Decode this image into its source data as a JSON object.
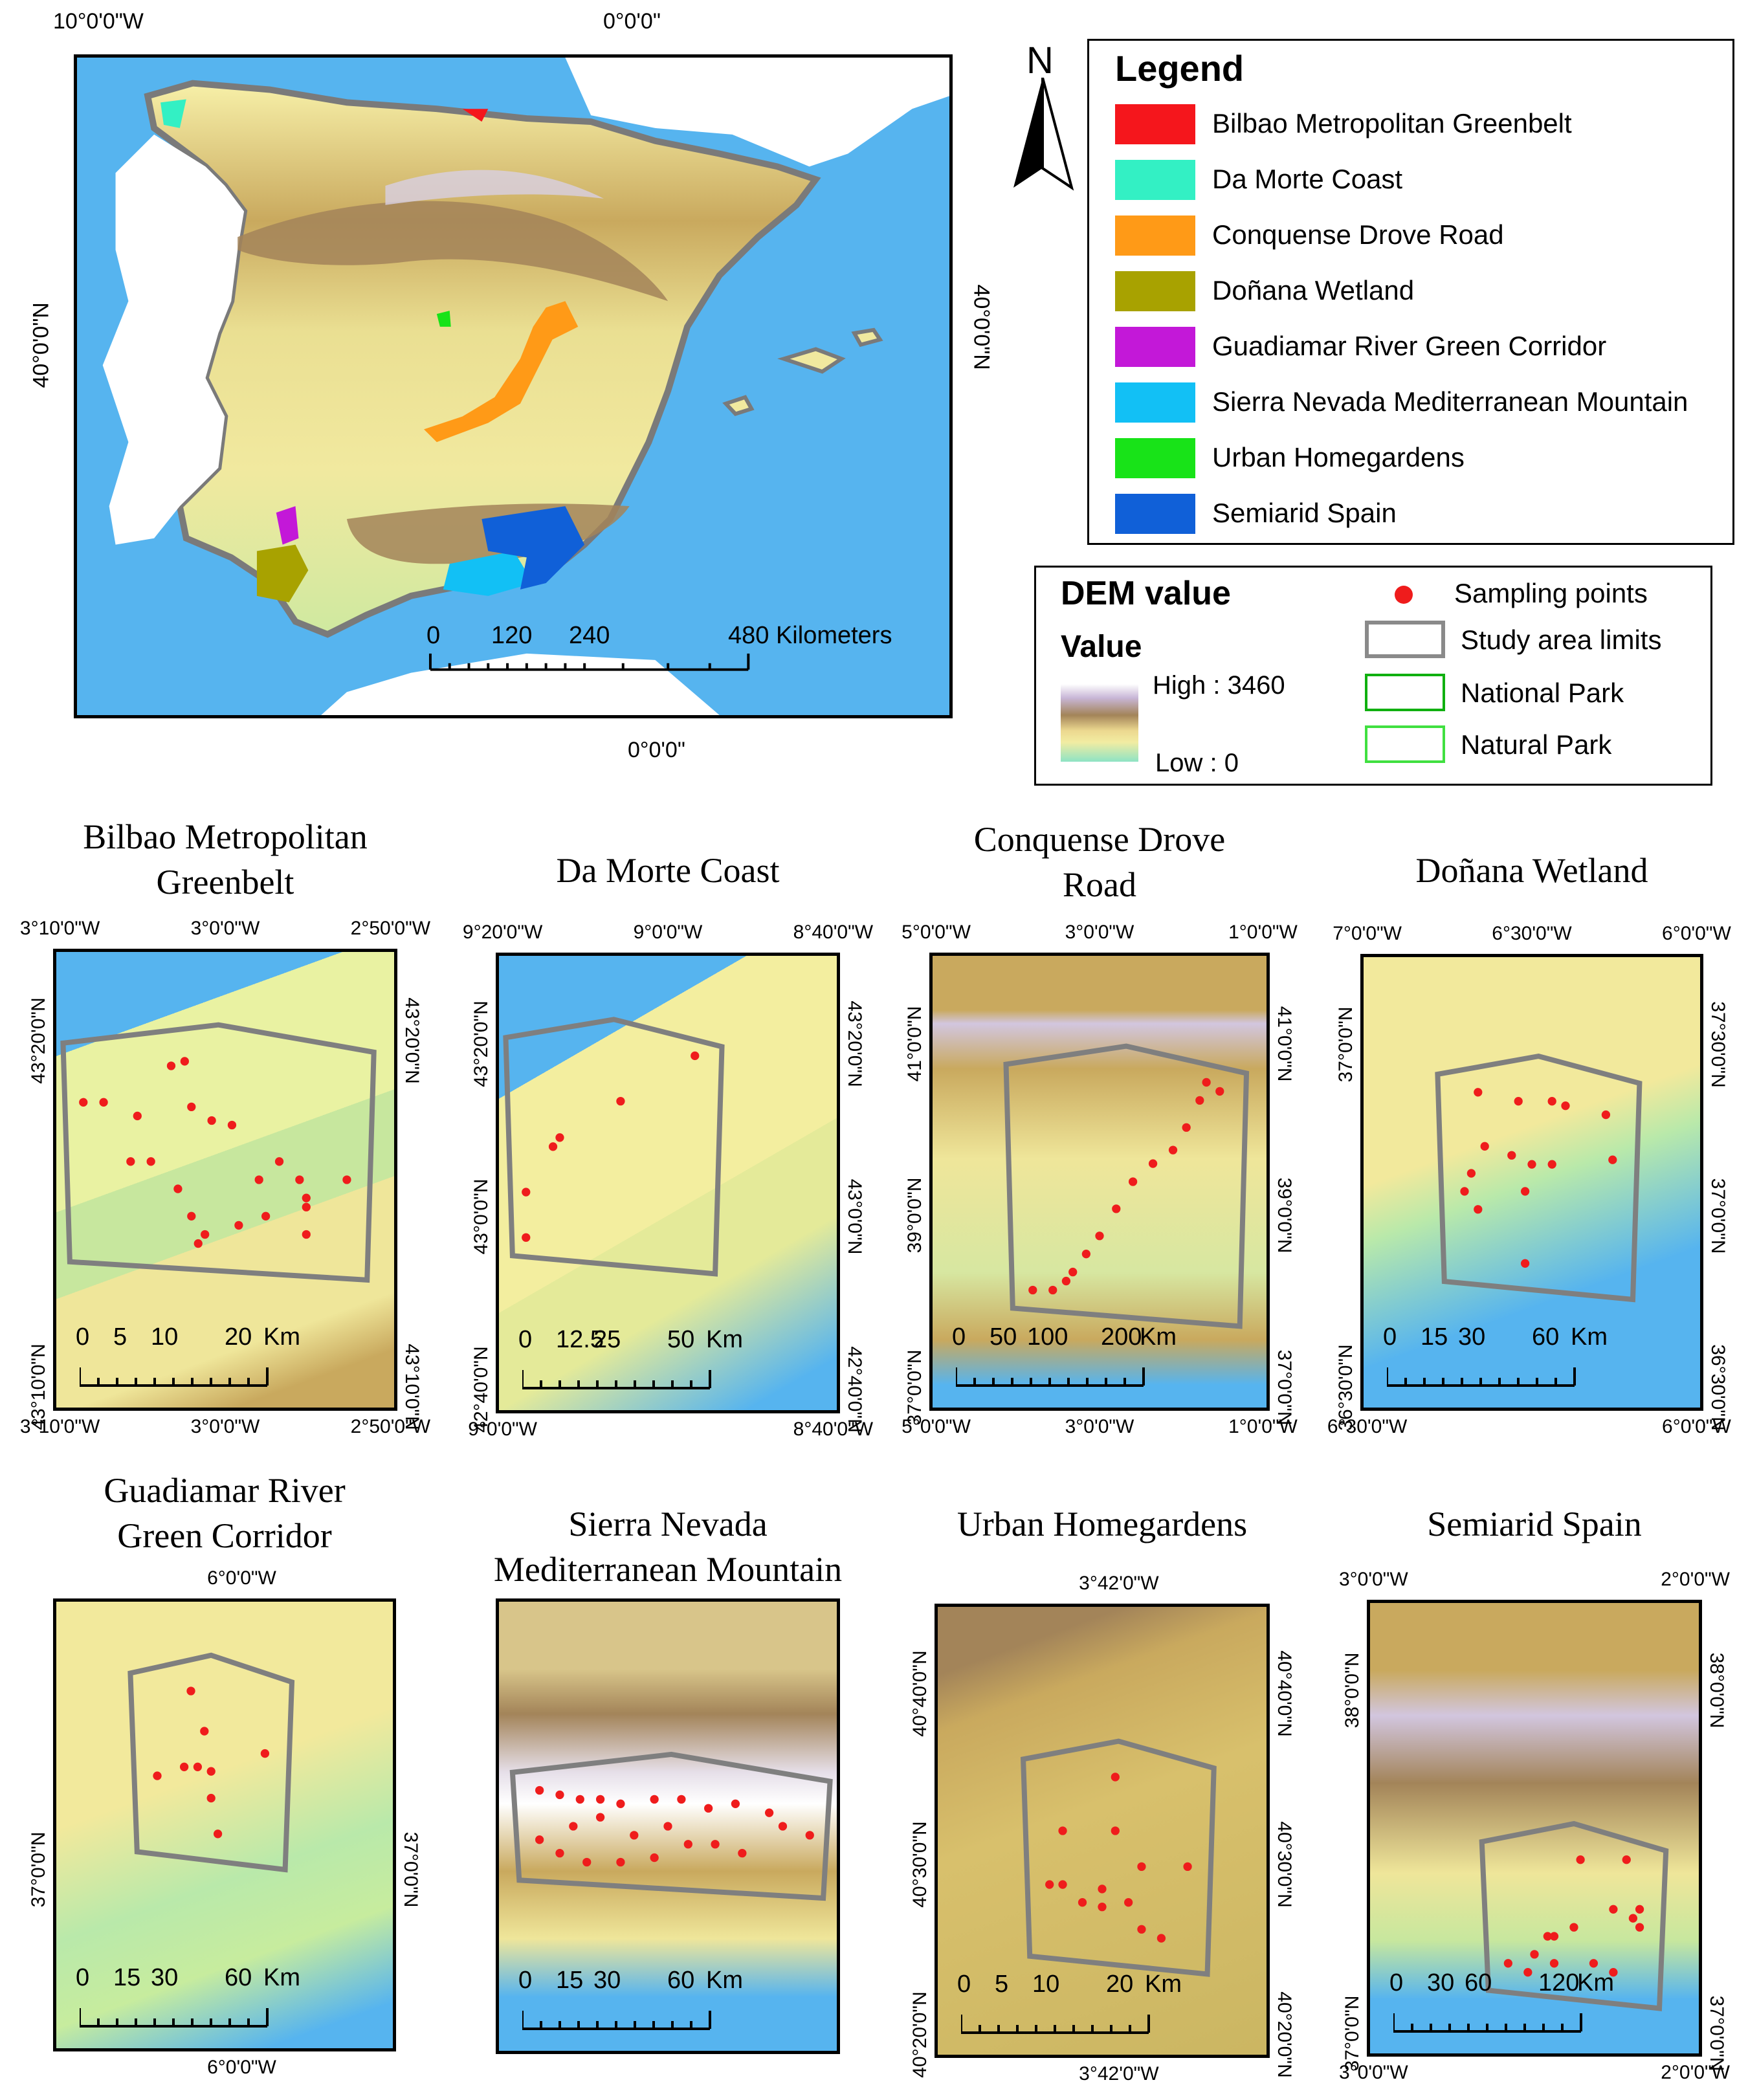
{
  "main_map": {
    "top_labels": [
      "10°0'0\"W",
      "0°0'0\""
    ],
    "bottom_label": "0°0'0\"",
    "left_label": "40°0'0\"N",
    "right_label": "40°0'0\"N",
    "scale": {
      "ticks": [
        "0",
        "120",
        "240"
      ],
      "end": "480 Kilometers"
    }
  },
  "north_arrow": {
    "letter": "N"
  },
  "legend": {
    "title": "Legend",
    "items": [
      {
        "label": "Bilbao Metropolitan Greenbelt",
        "color": "#f5161c"
      },
      {
        "label": "Da Morte Coast",
        "color": "#33f0c4"
      },
      {
        "label": "Conquense Drove Road",
        "color": "#ff9a17"
      },
      {
        "label": "Doñana Wetland",
        "color": "#a8a200"
      },
      {
        "label": "Guadiamar River Green Corridor",
        "color": "#c318d8"
      },
      {
        "label": "Sierra Nevada Mediterranean Mountain",
        "color": "#12c0f5"
      },
      {
        "label": "Urban Homegardens",
        "color": "#18e318"
      },
      {
        "label": "Semiarid Spain",
        "color": "#1060d8"
      }
    ]
  },
  "dem": {
    "title": "DEM value",
    "value_label": "Value",
    "high": "High : 3460",
    "low": "Low : 0",
    "sampling": "Sampling points",
    "study": "Study area limits",
    "national": "National Park",
    "natural": "Natural Park"
  },
  "panels": [
    {
      "title": "Bilbao Metropolitan\nGreenbelt",
      "top": [
        "3°10'0\"W",
        "3°0'0\"W",
        "2°50'0\"W"
      ],
      "bottom": [
        "3°10'0\"W",
        "3°0'0\"W",
        "2°50'0\"W"
      ],
      "left": [
        "43°20'0\"N",
        "43°10'0\"N"
      ],
      "right": [
        "43°20'0\"N",
        "43°10'0\"N"
      ],
      "scale": [
        "0",
        "5",
        "10",
        "20",
        "Km"
      ]
    },
    {
      "title": "Da Morte Coast",
      "top": [
        "9°20'0\"W",
        "9°0'0\"W",
        "8°40'0\"W"
      ],
      "bottom": [
        "9°0'0\"W",
        "8°40'0\"W"
      ],
      "left": [
        "43°20'0\"N",
        "43°0'0\"N",
        "42°40'0\"N"
      ],
      "right": [
        "43°20'0\"N",
        "43°0'0\"N",
        "42°40'0\"N"
      ],
      "scale": [
        "0",
        "12.5",
        "25",
        "50",
        "Km"
      ]
    },
    {
      "title": "Conquense Drove\nRoad",
      "top": [
        "5°0'0\"W",
        "3°0'0\"W",
        "1°0'0\"W"
      ],
      "bottom": [
        "5°0'0\"W",
        "3°0'0\"W",
        "1°0'0\"W"
      ],
      "left": [
        "41°0'0\"N",
        "39°0'0\"N",
        "37°0'0\"N"
      ],
      "right": [
        "41°0'0\"N",
        "39°0'0\"N",
        "37°0'0\"N"
      ],
      "scale": [
        "0",
        "50",
        "100",
        "200",
        "Km"
      ]
    },
    {
      "title": "Doñana Wetland",
      "top": [
        "7°0'0\"W",
        "6°30'0\"W",
        "6°0'0\"W"
      ],
      "bottom": [
        "6°30'0\"W",
        "6°0'0\"W"
      ],
      "left": [
        "37°0'0\"N",
        "36°30'0\"N"
      ],
      "right": [
        "37°30'0\"N",
        "37°0'0\"N",
        "36°30'0\"N"
      ],
      "scale": [
        "0",
        "15",
        "30",
        "60",
        "Km"
      ]
    },
    {
      "title": "Guadiamar River\nGreen Corridor",
      "top": [
        "6°0'0\"W"
      ],
      "bottom": [
        "6°0'0\"W"
      ],
      "left": [
        "37°0'0\"N"
      ],
      "right": [
        "37°0'0\"N"
      ],
      "scale": [
        "0",
        "15",
        "30",
        "60",
        "Km"
      ]
    },
    {
      "title": "Sierra Nevada\nMediterranean Mountain",
      "top": [],
      "bottom": [],
      "left": [],
      "right": [],
      "scale": [
        "0",
        "15",
        "30",
        "60",
        "Km"
      ]
    },
    {
      "title": "Urban Homegardens",
      "top": [
        "3°42'0\"W"
      ],
      "bottom": [
        "3°42'0\"W"
      ],
      "left": [
        "40°40'0\"N",
        "40°30'0\"N",
        "40°20'0\"N"
      ],
      "right": [
        "40°40'0\"N",
        "40°30'0\"N",
        "40°20'0\"N"
      ],
      "scale": [
        "0",
        "5",
        "10",
        "20",
        "Km"
      ]
    },
    {
      "title": "Semiarid Spain",
      "top": [
        "3°0'0\"W",
        "2°0'0\"W"
      ],
      "bottom": [
        "3°0'0\"W",
        "2°0'0\"W"
      ],
      "left": [
        "38°0'0\"N",
        "37°0'0\"N"
      ],
      "right": [
        "38°0'0\"N",
        "37°0'0\"N"
      ],
      "scale": [
        "0",
        "30",
        "60",
        "120",
        "Km"
      ]
    }
  ]
}
